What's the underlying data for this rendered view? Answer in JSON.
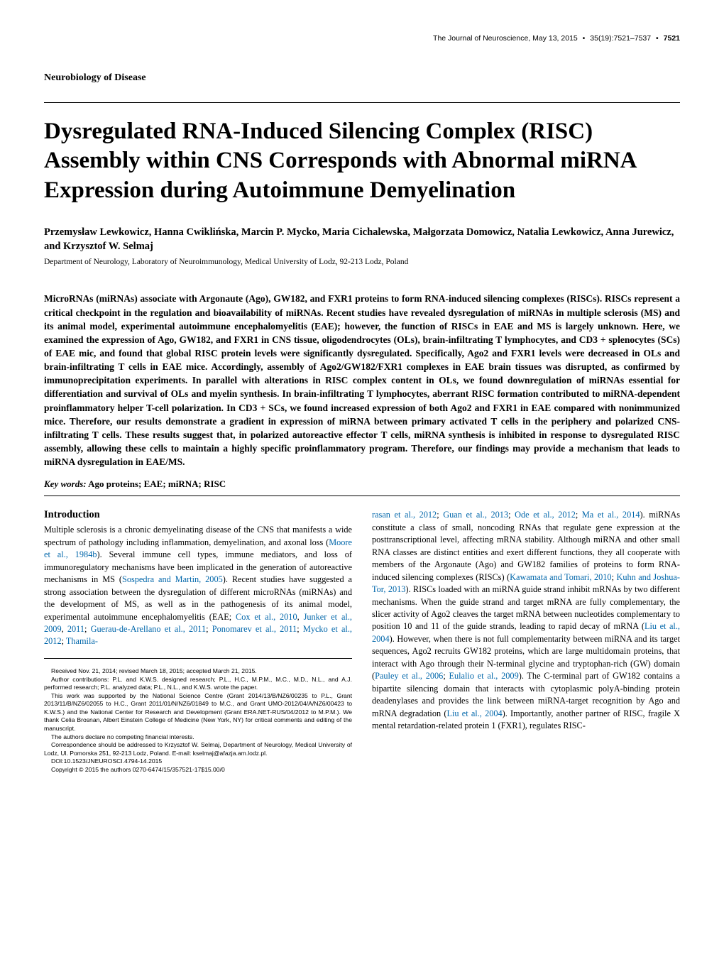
{
  "header": {
    "journal": "The Journal of Neuroscience, May 13, 2015",
    "volume": "35(19):7521–7537",
    "page": "7521"
  },
  "section_label": "Neurobiology of Disease",
  "title": "Dysregulated RNA-Induced Silencing Complex (RISC) Assembly within CNS Corresponds with Abnormal miRNA Expression during Autoimmune Demyelination",
  "authors": "Przemysław Lewkowicz, Hanna Cwiklińska, Marcin P. Mycko, Maria Cichalewska, Małgorzata Domowicz, Natalia Lewkowicz, Anna Jurewicz, and Krzysztof W. Selmaj",
  "affiliation": "Department of Neurology, Laboratory of Neuroimmunology, Medical University of Lodz, 92-213 Lodz, Poland",
  "abstract": "MicroRNAs (miRNAs) associate with Argonaute (Ago), GW182, and FXR1 proteins to form RNA-induced silencing complexes (RISCs). RISCs represent a critical checkpoint in the regulation and bioavailability of miRNAs. Recent studies have revealed dysregulation of miRNAs in multiple sclerosis (MS) and its animal model, experimental autoimmune encephalomyelitis (EAE); however, the function of RISCs in EAE and MS is largely unknown. Here, we examined the expression of Ago, GW182, and FXR1 in CNS tissue, oligodendrocytes (OLs), brain-infiltrating T lymphocytes, and CD3 + splenocytes (SCs) of EAE mic, and found that global RISC protein levels were significantly dysregulated. Specifically, Ago2 and FXR1 levels were decreased in OLs and brain-infiltrating T cells in EAE mice. Accordingly, assembly of Ago2/GW182/FXR1 complexes in EAE brain tissues was disrupted, as confirmed by immunoprecipitation experiments. In parallel with alterations in RISC complex content in OLs, we found downregulation of miRNAs essential for differentiation and survival of OLs and myelin synthesis. In brain-infiltrating T lymphocytes, aberrant RISC formation contributed to miRNA-dependent proinflammatory helper T-cell polarization. In CD3 + SCs, we found increased expression of both Ago2 and FXR1 in EAE compared with nonimmunized mice. Therefore, our results demonstrate a gradient in expression of miRNA between primary activated T cells in the periphery and polarized CNS-infiltrating T cells. These results suggest that, in polarized autoreactive effector T cells, miRNA synthesis is inhibited in response to dysregulated RISC assembly, allowing these cells to maintain a highly specific proinflammatory program. Therefore, our findings may provide a mechanism that leads to miRNA dysregulation in EAE/MS.",
  "keywords_label": "Key words:",
  "keywords_text": " Ago proteins; EAE; miRNA; RISC",
  "introduction": {
    "heading": "Introduction",
    "col1_para1": "Multiple sclerosis is a chronic demyelinating disease of the CNS that manifests a wide spectrum of pathology including inflammation, demyelination, and axonal loss (",
    "col1_link1": "Moore et al., 1984b",
    "col1_para1b": "). Several immune cell types, immune mediators, and loss of immunoregulatory mechanisms have been implicated in the generation of autoreactive mechanisms in MS (",
    "col1_link2": "Sospedra and Martin, 2005",
    "col1_para1c": "). Recent studies have suggested a strong association between the dysregulation of different microRNAs (miRNAs) and the development of MS, as well as in the pathogenesis of its animal model, experimental autoimmune encephalomyelitis (EAE; ",
    "col1_link3": "Cox et al., 2010",
    "col1_sep1": ", ",
    "col1_link4": "Junker et al., 2009",
    "col1_sep2": ", ",
    "col1_link5": "2011",
    "col1_sep3": "; ",
    "col1_link6": "Guerau-de-Arellano et al., 2011",
    "col1_sep4": "; ",
    "col1_link7": "Ponomarev et al., 2011",
    "col1_sep5": "; ",
    "col1_link8": "Mycko et al., 2012",
    "col1_sep6": "; ",
    "col1_link9": "Thamila-",
    "col2_link1": "rasan et al., 2012",
    "col2_sep1": "; ",
    "col2_link2": "Guan et al., 2013",
    "col2_sep2": "; ",
    "col2_link3": "Ode et al., 2012",
    "col2_sep3": "; ",
    "col2_link4": "Ma et al., 2014",
    "col2_para1": "). miRNAs constitute a class of small, noncoding RNAs that regulate gene expression at the posttranscriptional level, affecting mRNA stability. Although miRNA and other small RNA classes are distinct entities and exert different functions, they all cooperate with members of the Argonaute (Ago) and GW182 families of proteins to form RNA-induced silencing complexes (RISCs) (",
    "col2_link5": "Kawamata and Tomari, 2010",
    "col2_sep4": "; ",
    "col2_link6": "Kuhn and Joshua-Tor, 2013",
    "col2_para2": "). RISCs loaded with an miRNA guide strand inhibit mRNAs by two different mechanisms. When the guide strand and target mRNA are fully complementary, the slicer activity of Ago2 cleaves the target mRNA between nucleotides complementary to position 10 and 11 of the guide strands, leading to rapid decay of mRNA (",
    "col2_link7": "Liu et al., 2004",
    "col2_para3": "). However, when there is not full complementarity between miRNA and its target sequences, Ago2 recruits GW182 proteins, which are large multidomain proteins, that interact with Ago through their N-terminal glycine and tryptophan-rich (GW) domain (",
    "col2_link8": "Pauley et al., 2006",
    "col2_sep5": "; ",
    "col2_link9": "Eulalio et al., 2009",
    "col2_para4": "). The C-terminal part of GW182 contains a bipartite silencing domain that interacts with cytoplasmic polyA-binding protein deadenylases and provides the link between miRNA-target recognition by Ago and mRNA degradation (",
    "col2_link10": "Liu et al., 2004",
    "col2_para5": "). Importantly, another partner of RISC, fragile X mental retardation-related protein 1 (FXR1), regulates RISC-"
  },
  "footnotes": {
    "received": "Received Nov. 21, 2014; revised March 18, 2015; accepted March 21, 2015.",
    "contributions": "Author contributions: P.L. and K.W.S. designed research; P.L., H.C., M.P.M., M.C., M.D., N.L., and A.J. performed research; P.L. analyzed data; P.L., N.L., and K.W.S. wrote the paper.",
    "funding": "This work was supported by the National Science Centre (Grant 2014/13/B/NZ6/00235 to P.L., Grant 2013/11/B/NZ6/02055 to H.C., Grant 2011/01/N/NZ6/01849 to M.C., and Grant UMO-2012/04/A/NZ6/00423 to K.W.S.) and the National Center for Research and Development (Grant ERA.NET-RUS/04/2012 to M.P.M.). We thank Celia Brosnan, Albert Einstein College of Medicine (New York, NY) for critical comments and editing of the manuscript.",
    "conflict": "The authors declare no competing financial interests.",
    "correspondence": "Correspondence should be addressed to Krzysztof W. Selmaj, Department of Neurology, Medical University of Lodz, Ul. Pomorska 251, 92-213 Lodz, Poland. E-mail: kselmaj@afazja.am.lodz.pl.",
    "doi": "DOI:10.1523/JNEUROSCI.4794-14.2015",
    "copyright": "Copyright © 2015 the authors    0270-6474/15/357521-17$15.00/0"
  }
}
